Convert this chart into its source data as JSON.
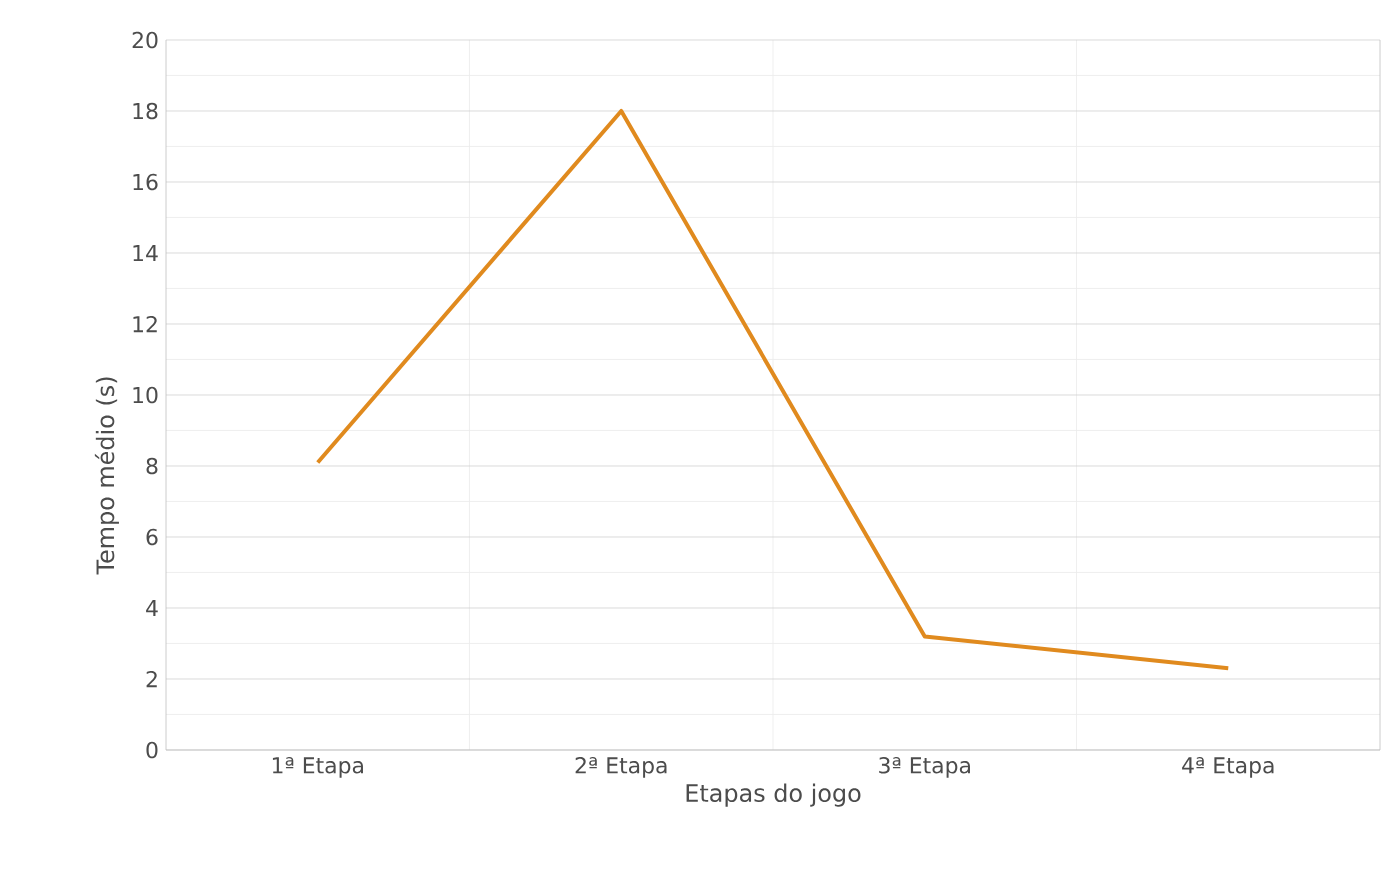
{
  "chart_data": {
    "type": "line",
    "xlabel": "Etapas do jogo",
    "ylabel": "Tempo médio (s)",
    "categories": [
      "1ª Etapa",
      "2ª Etapa",
      "3ª Etapa",
      "4ª Etapa"
    ],
    "series": [
      {
        "color": "#e08a1e",
        "values": [
          8.1,
          18,
          3.2,
          2.3
        ]
      }
    ],
    "ylim": [
      0,
      20
    ],
    "yticks": [
      0,
      2,
      4,
      6,
      8,
      10,
      12,
      14,
      16,
      18,
      20
    ],
    "grid": true,
    "marker": "none",
    "line_style": "solid"
  }
}
